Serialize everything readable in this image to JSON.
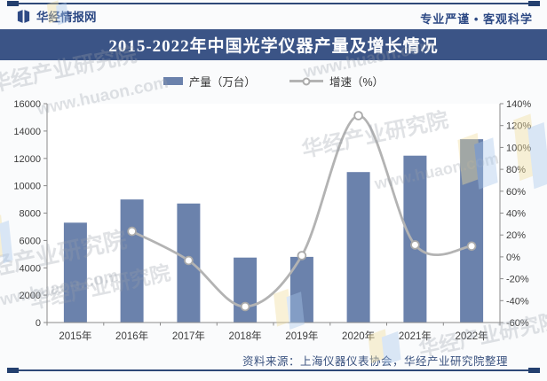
{
  "header": {
    "brand": "华经情报网",
    "slogan": "专业严谨 • 客观科学"
  },
  "title": "2015-2022年中国光学仪器产量及增长情况",
  "legend": [
    {
      "label": "产量（万台）",
      "type": "bar",
      "color": "#6b82ac"
    },
    {
      "label": "增速（%）",
      "type": "line",
      "color": "#b3b3b3"
    }
  ],
  "footer": {
    "source": "资料来源：上海仪器仪表协会，华经产业研究院整理"
  },
  "watermark": {
    "name": "华经产业研究院",
    "url": "www.huaon.com"
  },
  "colors": {
    "title_bar": "#3b5486",
    "bar": "#6b82ac",
    "line": "#b3b3b3",
    "marker_fill": "#ffffff",
    "marker_stroke": "#a9a9a9",
    "axis_text": "#3d3d3d",
    "brand_navy": "#2e4a85"
  },
  "chart_data": {
    "type": "bar+line combo",
    "title": "2015-2022年中国光学仪器产量及增长情况",
    "categories": [
      "2015年",
      "2016年",
      "2017年",
      "2018年",
      "2019年",
      "2020年",
      "2021年",
      "2022年"
    ],
    "series": [
      {
        "name": "产量（万台）",
        "type": "bar",
        "axis": "left",
        "color": "#6b82ac",
        "values": [
          7300,
          9000,
          8700,
          4750,
          4800,
          11000,
          12200,
          13400
        ]
      },
      {
        "name": "增速（%）",
        "type": "line",
        "axis": "right",
        "color": "#b3b3b3",
        "values": [
          null,
          23.3,
          -3.3,
          -45.4,
          1.1,
          129.1,
          10.9,
          9.8
        ]
      }
    ],
    "left_axis": {
      "min": 0,
      "max": 16000,
      "step": 2000,
      "ticks": [
        0,
        2000,
        4000,
        6000,
        8000,
        10000,
        12000,
        14000,
        16000
      ],
      "suffix": ""
    },
    "right_axis": {
      "min": -60,
      "max": 140,
      "step": 20,
      "ticks": [
        -60,
        -40,
        -20,
        0,
        20,
        40,
        60,
        80,
        100,
        120,
        140
      ],
      "suffix": "%"
    },
    "grid": false,
    "legend_position": "top",
    "xlabel": "",
    "ylabel_left": "产量（万台）",
    "ylabel_right": "增速（%）"
  }
}
